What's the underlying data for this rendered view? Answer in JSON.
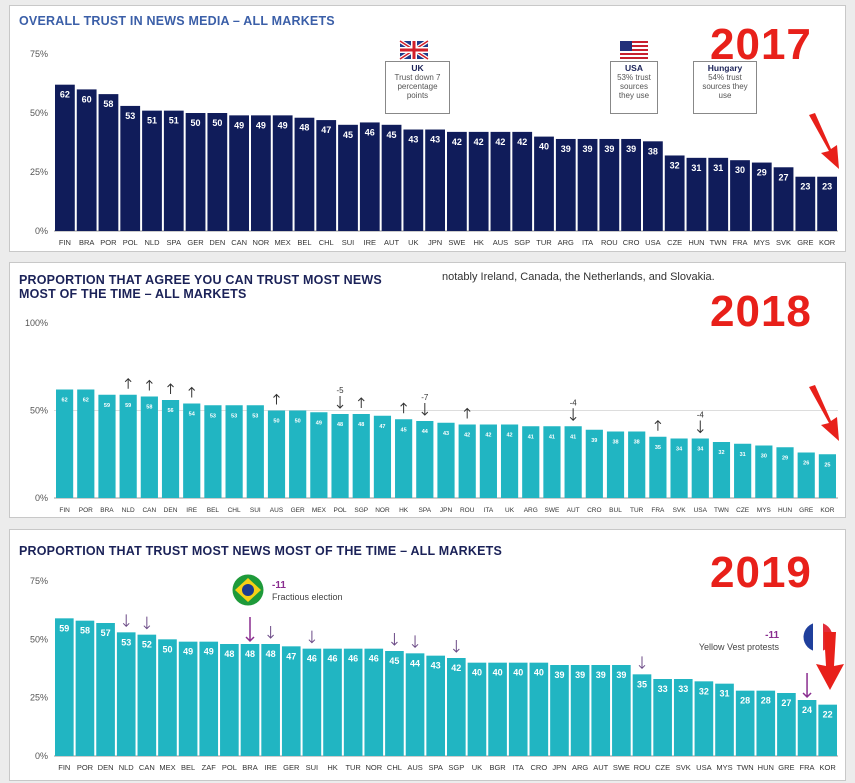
{
  "charts": [
    {
      "title": "OVERALL TRUST IN NEWS MEDIA – ALL MARKETS",
      "year": "2017",
      "ticks": [
        "75%",
        "50%",
        "25%",
        "0%"
      ],
      "color": "#101c5a",
      "labelColor": "#ffffff",
      "categories": [
        "FIN",
        "BRA",
        "POR",
        "POL",
        "NLD",
        "SPA",
        "GER",
        "DEN",
        "CAN",
        "NOR",
        "MEX",
        "BEL",
        "CHL",
        "SUI",
        "IRE",
        "AUT",
        "UK",
        "JPN",
        "SWE",
        "HK",
        "AUS",
        "SGP",
        "TUR",
        "ARG",
        "ITA",
        "ROU",
        "CRO",
        "USA",
        "CZE",
        "HUN",
        "TWN",
        "FRA",
        "MYS",
        "SVK",
        "GRE",
        "KOR"
      ],
      "values": [
        62,
        60,
        58,
        53,
        51,
        51,
        50,
        50,
        49,
        49,
        49,
        48,
        47,
        45,
        46,
        45,
        43,
        43,
        42,
        42,
        42,
        42,
        40,
        39,
        39,
        39,
        39,
        38,
        32,
        31,
        31,
        30,
        29,
        27,
        23,
        23
      ],
      "annotations": [
        {
          "title": "UK",
          "text": "Trust down 7 percentage points"
        },
        {
          "title": "USA",
          "text": "53% trust sources they use"
        },
        {
          "title": "Hungary",
          "text": "54% trust sources they use"
        }
      ]
    },
    {
      "title": "PROPORTION THAT AGREE YOU CAN TRUST MOST NEWS\nMOST OF THE TIME – ALL MARKETS",
      "year": "2018",
      "note": "notably Ireland, Canada, the Netherlands, and Slovakia.",
      "ticks": [
        "100%",
        "50%",
        "0%"
      ],
      "color": "#21b5c2",
      "labelColor": "#ffffff",
      "categories": [
        "FIN",
        "POR",
        "BRA",
        "NLD",
        "CAN",
        "DEN",
        "IRE",
        "BEL",
        "CHL",
        "SUI",
        "AUS",
        "GER",
        "MEX",
        "POL",
        "SGP",
        "NOR",
        "HK",
        "SPA",
        "JPN",
        "ROU",
        "ITA",
        "UK",
        "ARG",
        "SWE",
        "AUT",
        "CRO",
        "BUL",
        "TUR",
        "FRA",
        "SVK",
        "USA",
        "TWN",
        "CZE",
        "MYS",
        "HUN",
        "GRE",
        "KOR"
      ],
      "values": [
        62,
        62,
        59,
        59,
        58,
        56,
        54,
        53,
        53,
        53,
        50,
        50,
        49,
        48,
        48,
        47,
        45,
        44,
        43,
        42,
        42,
        42,
        41,
        41,
        41,
        39,
        38,
        38,
        35,
        34,
        34,
        32,
        31,
        30,
        29,
        26,
        25
      ],
      "ups": [
        "NLD",
        "CAN",
        "DEN",
        "IRE",
        "AUS",
        "SGP",
        "HK",
        "ROU",
        "FRA"
      ],
      "downs": [
        {
          "cat": "POL",
          "label": "-5"
        },
        {
          "cat": "SPA",
          "label": "-7"
        },
        {
          "cat": "AUT",
          "label": "-4"
        },
        {
          "cat": "USA",
          "label": "-4"
        }
      ]
    },
    {
      "title": "PROPORTION THAT TRUST MOST NEWS MOST OF THE TIME – ALL MARKETS",
      "year": "2019",
      "ticks": [
        "75%",
        "50%",
        "25%",
        "0%"
      ],
      "color": "#21b5c2",
      "labelColor": "#ffffff",
      "categories": [
        "FIN",
        "POR",
        "DEN",
        "NLD",
        "CAN",
        "MEX",
        "BEL",
        "ZAF",
        "POL",
        "BRA",
        "IRE",
        "GER",
        "SUI",
        "HK",
        "TUR",
        "NOR",
        "CHL",
        "AUS",
        "SPA",
        "SGP",
        "UK",
        "BGR",
        "ITA",
        "CRO",
        "JPN",
        "ARG",
        "AUT",
        "SWE",
        "ROU",
        "CZE",
        "SVK",
        "USA",
        "MYS",
        "TWN",
        "HUN",
        "GRE",
        "FRA",
        "KOR"
      ],
      "values": [
        59,
        58,
        57,
        53,
        52,
        50,
        49,
        49,
        48,
        48,
        48,
        47,
        46,
        46,
        46,
        46,
        45,
        44,
        43,
        42,
        40,
        40,
        40,
        40,
        39,
        39,
        39,
        39,
        35,
        33,
        33,
        32,
        31,
        28,
        28,
        27,
        24,
        22
      ],
      "downs": [
        "NLD",
        "CAN",
        "IRE",
        "SUI",
        "CHL",
        "AUS",
        "SGP",
        "ROU"
      ],
      "callouts": [
        {
          "cat": "BRA",
          "value": "-11",
          "text": "Fractious election"
        },
        {
          "cat": "FRA",
          "value": "-11",
          "text": "Yellow Vest protests"
        }
      ]
    }
  ],
  "chart_data": [
    {
      "type": "bar",
      "title": "OVERALL TRUST IN NEWS MEDIA – ALL MARKETS",
      "ylim": [
        0,
        75
      ],
      "categories": [
        "FIN",
        "BRA",
        "POR",
        "POL",
        "NLD",
        "SPA",
        "GER",
        "DEN",
        "CAN",
        "NOR",
        "MEX",
        "BEL",
        "CHL",
        "SUI",
        "IRE",
        "AUT",
        "UK",
        "JPN",
        "SWE",
        "HK",
        "AUS",
        "SGP",
        "TUR",
        "ARG",
        "ITA",
        "ROU",
        "CRO",
        "USA",
        "CZE",
        "HUN",
        "TWN",
        "FRA",
        "MYS",
        "SVK",
        "GRE",
        "KOR"
      ],
      "values": [
        62,
        60,
        58,
        53,
        51,
        51,
        50,
        50,
        49,
        49,
        49,
        48,
        47,
        45,
        46,
        45,
        43,
        43,
        42,
        42,
        42,
        42,
        40,
        39,
        39,
        39,
        39,
        38,
        32,
        31,
        31,
        30,
        29,
        27,
        23,
        23
      ]
    },
    {
      "type": "bar",
      "title": "PROPORTION THAT AGREE YOU CAN TRUST MOST NEWS MOST OF THE TIME – ALL MARKETS",
      "ylim": [
        0,
        100
      ],
      "categories": [
        "FIN",
        "POR",
        "BRA",
        "NLD",
        "CAN",
        "DEN",
        "IRE",
        "BEL",
        "CHL",
        "SUI",
        "AUS",
        "GER",
        "MEX",
        "POL",
        "SGP",
        "NOR",
        "HK",
        "SPA",
        "JPN",
        "ROU",
        "ITA",
        "UK",
        "ARG",
        "SWE",
        "AUT",
        "CRO",
        "BUL",
        "TUR",
        "FRA",
        "SVK",
        "USA",
        "TWN",
        "CZE",
        "MYS",
        "HUN",
        "GRE",
        "KOR"
      ],
      "values": [
        62,
        62,
        59,
        59,
        58,
        56,
        54,
        53,
        53,
        53,
        50,
        50,
        49,
        48,
        48,
        47,
        45,
        44,
        43,
        42,
        42,
        42,
        41,
        41,
        41,
        39,
        38,
        38,
        35,
        34,
        34,
        32,
        31,
        30,
        29,
        26,
        25
      ]
    },
    {
      "type": "bar",
      "title": "PROPORTION THAT TRUST MOST NEWS MOST OF THE TIME – ALL MARKETS",
      "ylim": [
        0,
        75
      ],
      "categories": [
        "FIN",
        "POR",
        "DEN",
        "NLD",
        "CAN",
        "MEX",
        "BEL",
        "ZAF",
        "POL",
        "BRA",
        "IRE",
        "GER",
        "SUI",
        "HK",
        "TUR",
        "NOR",
        "CHL",
        "AUS",
        "SPA",
        "SGP",
        "UK",
        "BGR",
        "ITA",
        "CRO",
        "JPN",
        "ARG",
        "AUT",
        "SWE",
        "ROU",
        "CZE",
        "SVK",
        "USA",
        "MYS",
        "TWN",
        "HUN",
        "GRE",
        "FRA",
        "KOR"
      ],
      "values": [
        59,
        58,
        57,
        53,
        52,
        50,
        49,
        49,
        48,
        48,
        48,
        47,
        46,
        46,
        46,
        46,
        45,
        44,
        43,
        42,
        40,
        40,
        40,
        40,
        39,
        39,
        39,
        39,
        35,
        33,
        33,
        32,
        31,
        28,
        28,
        27,
        24,
        22
      ]
    }
  ]
}
